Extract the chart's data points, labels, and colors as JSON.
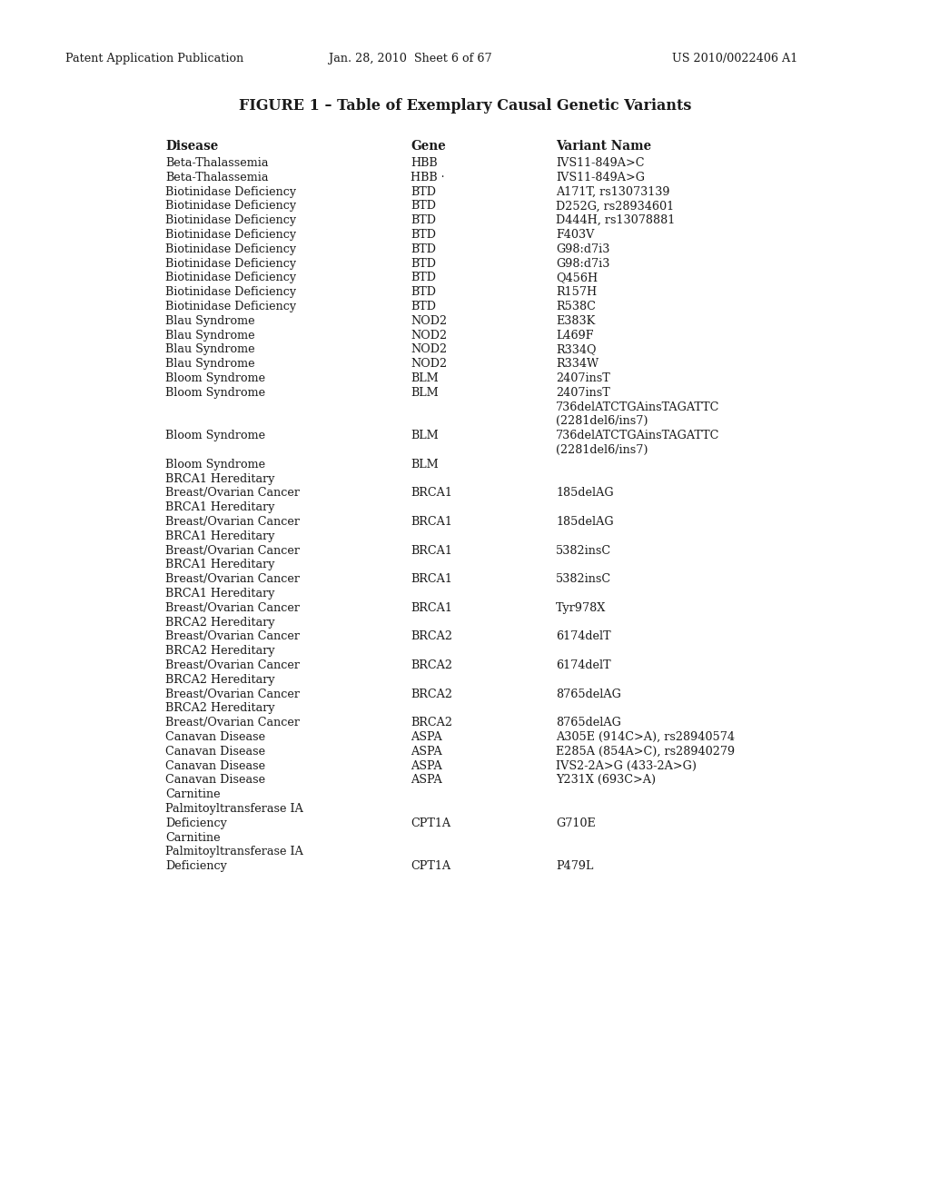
{
  "header_left": "Patent Application Publication",
  "header_center": "Jan. 28, 2010  Sheet 6 of 67",
  "header_right": "US 2010/0022406 A1",
  "title": "FIGURE 1 – Table of Exemplary Causal Genetic Variants",
  "col_headers": [
    "Disease",
    "Gene",
    "Variant Name"
  ],
  "background_color": "#ffffff",
  "text_color": "#1a1a1a",
  "font_size": 9.2,
  "header_font_size": 9.2,
  "title_font_size": 11.5,
  "col_header_font_size": 9.8,
  "rows": [
    {
      "lines": [
        {
          "d": "Beta-Thalassemia",
          "g": "HBB",
          "v": "IVS11-849A>C"
        }
      ]
    },
    {
      "lines": [
        {
          "d": "Beta-Thalassemia",
          "g": "HBB ·",
          "v": "IVS11-849A>G"
        }
      ]
    },
    {
      "lines": [
        {
          "d": "Biotinidase Deficiency",
          "g": "BTD",
          "v": "A171T, rs13073139"
        }
      ]
    },
    {
      "lines": [
        {
          "d": "Biotinidase Deficiency",
          "g": "BTD",
          "v": "D252G, rs28934601"
        }
      ]
    },
    {
      "lines": [
        {
          "d": "Biotinidase Deficiency",
          "g": "BTD",
          "v": "D444H, rs13078881"
        }
      ]
    },
    {
      "lines": [
        {
          "d": "Biotinidase Deficiency",
          "g": "BTD",
          "v": "F403V"
        }
      ]
    },
    {
      "lines": [
        {
          "d": "Biotinidase Deficiency",
          "g": "BTD",
          "v": "G98:d7i3"
        }
      ]
    },
    {
      "lines": [
        {
          "d": "Biotinidase Deficiency",
          "g": "BTD",
          "v": "G98:d7i3"
        }
      ]
    },
    {
      "lines": [
        {
          "d": "Biotinidase Deficiency",
          "g": "BTD",
          "v": "Q456H"
        }
      ]
    },
    {
      "lines": [
        {
          "d": "Biotinidase Deficiency",
          "g": "BTD",
          "v": "R157H"
        }
      ]
    },
    {
      "lines": [
        {
          "d": "Biotinidase Deficiency",
          "g": "BTD",
          "v": "R538C"
        }
      ]
    },
    {
      "lines": [
        {
          "d": "Blau Syndrome",
          "g": "NOD2",
          "v": "E383K"
        }
      ]
    },
    {
      "lines": [
        {
          "d": "Blau Syndrome",
          "g": "NOD2",
          "v": "L469F"
        }
      ]
    },
    {
      "lines": [
        {
          "d": "Blau Syndrome",
          "g": "NOD2",
          "v": "R334Q"
        }
      ]
    },
    {
      "lines": [
        {
          "d": "Blau Syndrome",
          "g": "NOD2",
          "v": "R334W"
        }
      ]
    },
    {
      "lines": [
        {
          "d": "Bloom Syndrome",
          "g": "BLM",
          "v": "2407insT"
        }
      ]
    },
    {
      "lines": [
        {
          "d": "Bloom Syndrome",
          "g": "BLM",
          "v": "2407insT"
        },
        {
          "d": "",
          "g": "",
          "v": "736delATCTGAinsTAGATTC"
        },
        {
          "d": "",
          "g": "",
          "v": "(2281del6/ins7)"
        }
      ]
    },
    {
      "lines": [
        {
          "d": "Bloom Syndrome",
          "g": "BLM",
          "v": "736delATCTGAinsTAGATTC"
        },
        {
          "d": "",
          "g": "",
          "v": "(2281del6/ins7)"
        }
      ]
    },
    {
      "lines": [
        {
          "d": "Bloom Syndrome",
          "g": "BLM",
          "v": ""
        },
        {
          "d": "BRCA1 Hereditary",
          "g": "",
          "v": ""
        }
      ]
    },
    {
      "lines": [
        {
          "d": "Breast/Ovarian Cancer",
          "g": "BRCA1",
          "v": "185delAG"
        },
        {
          "d": "BRCA1 Hereditary",
          "g": "",
          "v": ""
        }
      ]
    },
    {
      "lines": [
        {
          "d": "Breast/Ovarian Cancer",
          "g": "BRCA1",
          "v": "185delAG"
        },
        {
          "d": "BRCA1 Hereditary",
          "g": "",
          "v": ""
        }
      ]
    },
    {
      "lines": [
        {
          "d": "Breast/Ovarian Cancer",
          "g": "BRCA1",
          "v": "5382insC"
        },
        {
          "d": "BRCA1 Hereditary",
          "g": "",
          "v": ""
        }
      ]
    },
    {
      "lines": [
        {
          "d": "Breast/Ovarian Cancer",
          "g": "BRCA1",
          "v": "5382insC"
        },
        {
          "d": "BRCA1 Hereditary",
          "g": "",
          "v": ""
        }
      ]
    },
    {
      "lines": [
        {
          "d": "Breast/Ovarian Cancer",
          "g": "BRCA1",
          "v": "Tyr978X"
        },
        {
          "d": "BRCA2 Hereditary",
          "g": "",
          "v": ""
        }
      ]
    },
    {
      "lines": [
        {
          "d": "Breast/Ovarian Cancer",
          "g": "BRCA2",
          "v": "6174delT"
        },
        {
          "d": "BRCA2 Hereditary",
          "g": "",
          "v": ""
        }
      ]
    },
    {
      "lines": [
        {
          "d": "Breast/Ovarian Cancer",
          "g": "BRCA2",
          "v": "6174delT"
        },
        {
          "d": "BRCA2 Hereditary",
          "g": "",
          "v": ""
        }
      ]
    },
    {
      "lines": [
        {
          "d": "Breast/Ovarian Cancer",
          "g": "BRCA2",
          "v": "8765delAG"
        },
        {
          "d": "BRCA2 Hereditary",
          "g": "",
          "v": ""
        }
      ]
    },
    {
      "lines": [
        {
          "d": "Breast/Ovarian Cancer",
          "g": "BRCA2",
          "v": "8765delAG"
        }
      ]
    },
    {
      "lines": [
        {
          "d": "Canavan Disease",
          "g": "ASPA",
          "v": "A305E (914C>A), rs28940574"
        }
      ]
    },
    {
      "lines": [
        {
          "d": "Canavan Disease",
          "g": "ASPA",
          "v": "E285A (854A>C), rs28940279"
        }
      ]
    },
    {
      "lines": [
        {
          "d": "Canavan Disease",
          "g": "ASPA",
          "v": "IVS2-2A>G (433-2A>G)"
        }
      ]
    },
    {
      "lines": [
        {
          "d": "Canavan Disease",
          "g": "ASPA",
          "v": "Y231X (693C>A)"
        },
        {
          "d": "Carnitine",
          "g": "",
          "v": ""
        }
      ]
    },
    {
      "lines": [
        {
          "d": "Palmitoyltransferase IA",
          "g": "",
          "v": ""
        },
        {
          "d": "Deficiency",
          "g": "CPT1A",
          "v": "G710E"
        },
        {
          "d": "Carnitine",
          "g": "",
          "v": ""
        }
      ]
    },
    {
      "lines": [
        {
          "d": "Palmitoyltransferase IA",
          "g": "",
          "v": ""
        },
        {
          "d": "Deficiency",
          "g": "CPT1A",
          "v": "P479L"
        }
      ]
    }
  ]
}
